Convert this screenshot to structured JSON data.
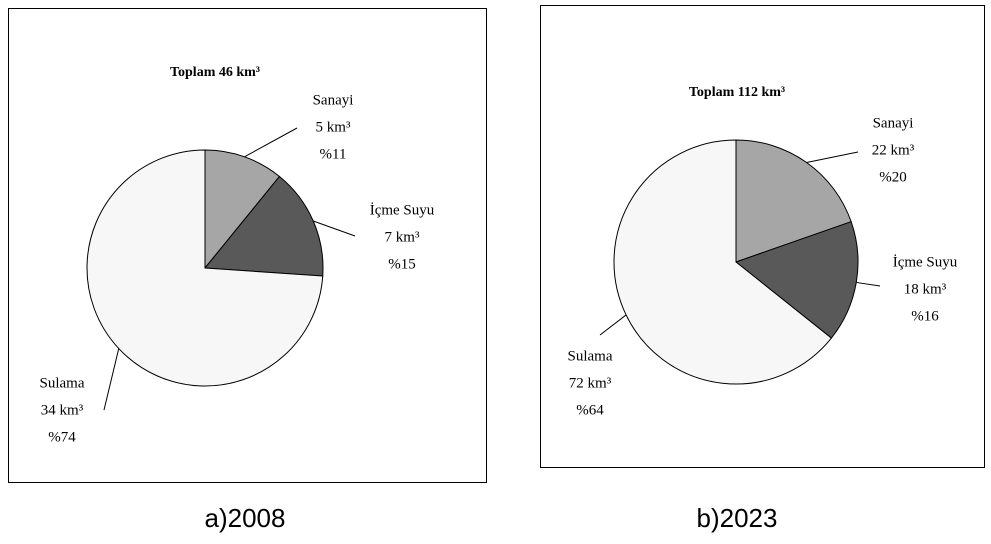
{
  "chart_data": [
    {
      "type": "pie",
      "title": "Toplam 46 km³",
      "caption": "a)2008",
      "categories": [
        "Sanayi",
        "İçme Suyu",
        "Sulama"
      ],
      "values": [
        5,
        7,
        34
      ],
      "value_labels": [
        "5 km³",
        "7 km³",
        "34 km³"
      ],
      "percents": [
        11,
        15,
        74
      ],
      "percent_labels": [
        "%11",
        "%15",
        "%74"
      ],
      "colors": [
        "#a6a6a6",
        "#595959",
        "#f7f7f7"
      ]
    },
    {
      "type": "pie",
      "title": "Toplam 112 km³",
      "caption": "b)2023",
      "categories": [
        "Sanayi",
        "İçme Suyu",
        "Sulama"
      ],
      "values": [
        22,
        18,
        72
      ],
      "value_labels": [
        "22 km³",
        "18 km³",
        "72 km³"
      ],
      "percents": [
        20,
        16,
        64
      ],
      "percent_labels": [
        "%20",
        "%16",
        "%64"
      ],
      "colors": [
        "#a6a6a6",
        "#595959",
        "#f7f7f7"
      ]
    }
  ]
}
